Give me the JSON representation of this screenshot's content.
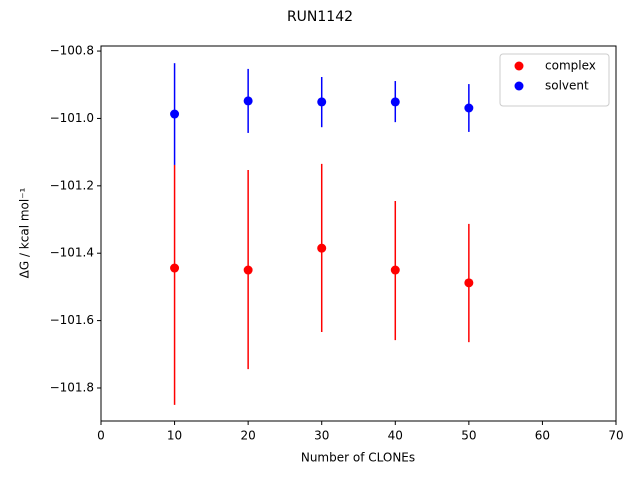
{
  "chart_data": {
    "type": "errorbar",
    "title": "RUN1142",
    "xlabel": "Number of CLONEs",
    "ylabel": "ΔG / kcal mol⁻¹",
    "x": [
      10,
      20,
      30,
      40,
      50
    ],
    "series": [
      {
        "name": "complex",
        "color": "#ff0000",
        "values": [
          -101.444,
          -101.45,
          -101.385,
          -101.45,
          -101.488
        ],
        "lower": [
          -101.85,
          -101.744,
          -101.634,
          -101.658,
          -101.664
        ],
        "upper": [
          -101.138,
          -101.153,
          -101.135,
          -101.245,
          -101.313
        ]
      },
      {
        "name": "solvent",
        "color": "#0000ff",
        "values": [
          -100.987,
          -100.948,
          -100.951,
          -100.951,
          -100.969
        ],
        "lower": [
          -101.138,
          -101.043,
          -101.026,
          -101.011,
          -101.04
        ],
        "upper": [
          -100.836,
          -100.853,
          -100.877,
          -100.889,
          -100.898
        ]
      }
    ],
    "xlim": [
      0,
      70
    ],
    "xticks": [
      0,
      10,
      20,
      30,
      40,
      50,
      60,
      70
    ],
    "ylim": [
      -101.898,
      -100.785
    ],
    "yticks": [
      {
        "value": -101.8,
        "label": "−101.8"
      },
      {
        "value": -101.6,
        "label": "−101.6"
      },
      {
        "value": -101.4,
        "label": "−101.4"
      },
      {
        "value": -101.2,
        "label": "−101.2"
      },
      {
        "value": -101.0,
        "label": "−101.0"
      },
      {
        "value": -100.8,
        "label": "−100.8"
      }
    ],
    "legend": "upper right"
  }
}
